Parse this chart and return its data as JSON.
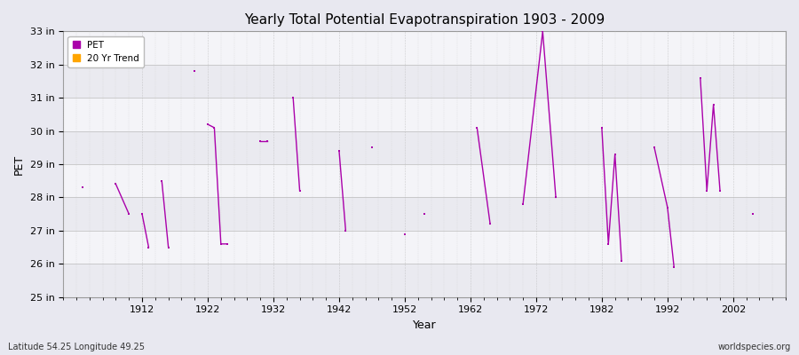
{
  "title": "Yearly Total Potential Evapotranspiration 1903 - 2009",
  "xlabel": "Year",
  "ylabel": "PET",
  "footnote_left": "Latitude 54.25 Longitude 49.25",
  "footnote_right": "worldspecies.org",
  "ylim": [
    25,
    33
  ],
  "ytick_labels": [
    "25 in",
    "26 in",
    "27 in",
    "28 in",
    "29 in",
    "30 in",
    "31 in",
    "32 in",
    "33 in"
  ],
  "ytick_values": [
    25,
    26,
    27,
    28,
    29,
    30,
    31,
    32,
    33
  ],
  "xlim": [
    1900,
    2010
  ],
  "xtick_positions": [
    1912,
    1922,
    1932,
    1942,
    1952,
    1962,
    1972,
    1982,
    1992,
    2002
  ],
  "pet_color": "#aa00aa",
  "trend_color": "#FFA500",
  "bg_color": "#e8e8f0",
  "inner_bg_color": "#f4f4f8",
  "grid_color": "#cccccc",
  "band_colors": [
    "#eaeaf0",
    "#f4f4f8"
  ],
  "pet_segments": [
    [
      [
        1903,
        28.3
      ]
    ],
    [
      [
        1908,
        28.4
      ],
      [
        1910,
        27.5
      ]
    ],
    [
      [
        1912,
        27.5
      ],
      [
        1913,
        26.5
      ]
    ],
    [
      [
        1915,
        28.5
      ],
      [
        1916,
        26.5
      ]
    ],
    [
      [
        1920,
        31.8
      ]
    ],
    [
      [
        1922,
        30.2
      ],
      [
        1923,
        30.1
      ],
      [
        1924,
        26.6
      ],
      [
        1925,
        26.6
      ]
    ],
    [
      [
        1930,
        29.7
      ],
      [
        1931,
        29.7
      ]
    ],
    [
      [
        1935,
        31.0
      ],
      [
        1936,
        28.2
      ]
    ],
    [
      [
        1942,
        29.4
      ],
      [
        1943,
        27.0
      ]
    ],
    [
      [
        1947,
        29.5
      ]
    ],
    [
      [
        1952,
        26.9
      ]
    ],
    [
      [
        1955,
        27.5
      ]
    ],
    [
      [
        1963,
        30.1
      ],
      [
        1965,
        27.2
      ]
    ],
    [
      [
        1970,
        27.8
      ],
      [
        1973,
        33.0
      ],
      [
        1975,
        28.0
      ]
    ],
    [
      [
        1982,
        30.1
      ],
      [
        1983,
        26.6
      ],
      [
        1984,
        29.3
      ],
      [
        1985,
        26.1
      ]
    ],
    [
      [
        1990,
        29.5
      ],
      [
        1992,
        27.7
      ],
      [
        1993,
        25.9
      ]
    ],
    [
      [
        1997,
        31.6
      ],
      [
        1998,
        28.2
      ],
      [
        1999,
        30.8
      ],
      [
        2000,
        28.2
      ]
    ],
    [
      [
        2005,
        27.5
      ]
    ]
  ]
}
